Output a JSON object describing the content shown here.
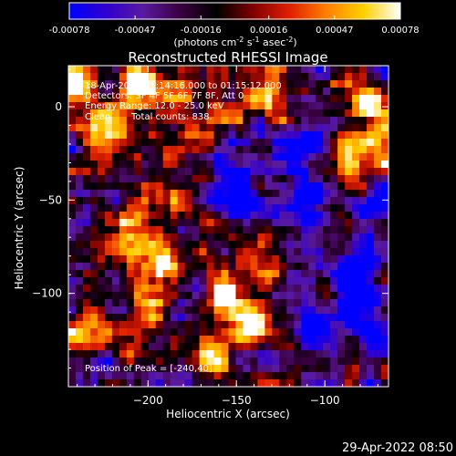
{
  "chart_data": {
    "type": "heatmap",
    "title": "Reconstructed RHESSI Image",
    "xlabel": "Heliocentric X (arcsec)",
    "ylabel": "Heliocentric Y (arcsec)",
    "xlim": [
      -245,
      -64
    ],
    "ylim": [
      -150,
      22
    ],
    "x_ticks": [
      -200,
      -150,
      -100
    ],
    "y_ticks": [
      0,
      -50,
      -100
    ],
    "colorbar": {
      "range": [
        -0.00078,
        0.00078
      ],
      "ticks": [
        "-0.00078",
        "-0.00047",
        "-0.00016",
        "0.00016",
        "0.00047",
        "0.00078"
      ],
      "tick_values": [
        -0.00078,
        -0.00047,
        -0.00016,
        0.00016,
        0.00047,
        0.00078
      ],
      "unit_label": "(photons cm",
      "unit_sup1": "-2",
      "unit_mid1": " s",
      "unit_sup2": "-1",
      "unit_mid2": " asec",
      "unit_sup3": "-2",
      "unit_end": ")",
      "colors": [
        "#0000ff",
        "#3000d0",
        "#5a1aa0",
        "#3a0040",
        "#000000",
        "#800000",
        "#e02000",
        "#ff8000",
        "#ffd000",
        "#ffffff"
      ]
    },
    "annotations": {
      "time": "18-Apr-2005 01:14:16.000 to 01:15:12.000",
      "detectors": "Detectors: 3F 4F 5F 6F 7F 8F, Att 0",
      "energy": "Energy Range: 12.0 - 25.0 keV",
      "clean_label": "Clean",
      "counts": "Total counts: 838.",
      "peak": "Position of Peak = [-240,40]"
    },
    "hot_regions": [
      {
        "x": -240,
        "y": 15,
        "level": 0.95
      },
      {
        "x": -225,
        "y": -10,
        "level": 0.7
      },
      {
        "x": -205,
        "y": 10,
        "level": 0.8
      },
      {
        "x": -180,
        "y": 12,
        "level": 0.65
      },
      {
        "x": -160,
        "y": -5,
        "level": 0.6
      },
      {
        "x": -130,
        "y": 5,
        "level": 0.55
      },
      {
        "x": -75,
        "y": 5,
        "level": 0.9
      },
      {
        "x": -70,
        "y": -15,
        "level": 0.8
      },
      {
        "x": -90,
        "y": -25,
        "level": 0.5
      },
      {
        "x": -230,
        "y": -35,
        "level": 0.55
      },
      {
        "x": -210,
        "y": -70,
        "level": 0.75
      },
      {
        "x": -190,
        "y": -85,
        "level": 0.7
      },
      {
        "x": -200,
        "y": -110,
        "level": 0.75
      },
      {
        "x": -160,
        "y": -100,
        "level": 0.85
      },
      {
        "x": -145,
        "y": -115,
        "level": 0.8
      },
      {
        "x": -165,
        "y": -130,
        "level": 0.65
      },
      {
        "x": -185,
        "y": -50,
        "level": 0.6
      },
      {
        "x": -130,
        "y": -80,
        "level": 0.5
      },
      {
        "x": -235,
        "y": -120,
        "level": 0.5
      }
    ],
    "cold_regions": [
      {
        "x": -110,
        "y": -50,
        "level": -0.7
      },
      {
        "x": -85,
        "y": -90,
        "level": -0.85
      },
      {
        "x": -100,
        "y": -120,
        "level": -0.6
      },
      {
        "x": -150,
        "y": -40,
        "level": -0.5
      },
      {
        "x": -75,
        "y": -120,
        "level": -0.6
      },
      {
        "x": -120,
        "y": -20,
        "level": -0.45
      }
    ]
  },
  "footer": {
    "timestamp": "29-Apr-2022 08:50"
  }
}
